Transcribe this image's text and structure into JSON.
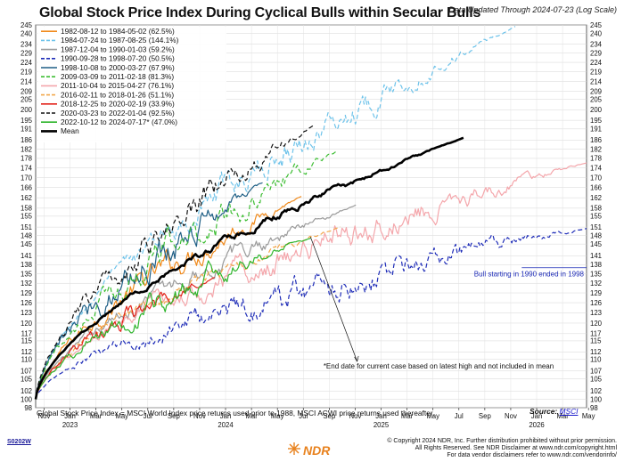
{
  "header": {
    "title": "Global Stock Price Index During Cyclical Bulls within Secular Bulls",
    "updated": "Data Updated Through 2024-07-23 (Log Scale)"
  },
  "footer": {
    "note": "Global Stock Price Index = MSCI World Index price returns used prior to 1988, MSCI ACWI price returns used thereafter.",
    "source_label": "Source:",
    "source_link": "MSCI",
    "code": "S0202W",
    "logo": "NDR",
    "copyright_1": "© Copyright 2024 NDR, Inc. Further distribution prohibited without prior permission.",
    "copyright_2": "All Rights Reserved. See NDR Disclaimer at www.ndr.com/copyright.html",
    "copyright_3": "For data vendor disclaimers refer to www.ndr.com/vendorinfo/"
  },
  "colors": {
    "s1982": "#f08a1c",
    "s1984": "#6ec3ea",
    "s1987": "#9a9a9a",
    "s1990": "#1f2db8",
    "s1998": "#1f5f85",
    "s2009": "#3dbd33",
    "s2011": "#f4a6ab",
    "s2016": "#f2a64a",
    "s2018": "#e2231a",
    "s2020": "#111111",
    "s2022": "#2db52b",
    "mean": "#000000"
  },
  "chart_data": {
    "type": "line",
    "title": "Global Stock Price Index During Cyclical Bulls within Secular Bulls",
    "y_scale": "log",
    "ylim": [
      98,
      245
    ],
    "y_ticks": [
      98,
      100,
      102,
      105,
      107,
      110,
      112,
      115,
      117,
      120,
      123,
      126,
      129,
      132,
      135,
      138,
      141,
      145,
      148,
      151,
      155,
      158,
      162,
      166,
      170,
      174,
      178,
      182,
      186,
      191,
      195,
      200,
      205,
      209,
      214,
      219,
      224,
      229,
      234,
      240,
      245
    ],
    "x_ticks": [
      {
        "label": "Nov",
        "year": ""
      },
      {
        "label": "Jan",
        "year": "2023"
      },
      {
        "label": "Mar",
        "year": ""
      },
      {
        "label": "May",
        "year": ""
      },
      {
        "label": "Jul",
        "year": ""
      },
      {
        "label": "Sep",
        "year": ""
      },
      {
        "label": "Nov",
        "year": ""
      },
      {
        "label": "Jan",
        "year": "2024"
      },
      {
        "label": "Mar",
        "year": ""
      },
      {
        "label": "May",
        "year": ""
      },
      {
        "label": "Jul",
        "year": ""
      },
      {
        "label": "Sep",
        "year": ""
      },
      {
        "label": "Nov",
        "year": ""
      },
      {
        "label": "Jan",
        "year": "2025"
      },
      {
        "label": "Mar",
        "year": ""
      },
      {
        "label": "May",
        "year": ""
      },
      {
        "label": "Jul",
        "year": ""
      },
      {
        "label": "Sep",
        "year": ""
      },
      {
        "label": "Nov",
        "year": ""
      },
      {
        "label": "Jan",
        "year": "2026"
      },
      {
        "label": "Mar",
        "year": ""
      },
      {
        "label": "May",
        "year": ""
      }
    ],
    "x_unit": "months from 2022-10-12 (current cycle start)",
    "x_range": [
      0,
      42.5
    ],
    "grid": true,
    "legend_position": "top-left",
    "series": [
      {
        "name": "1982-08-12 to 1984-05-02 (62.5%)",
        "color_key": "s1982",
        "dash": "solid",
        "end": 162.5,
        "end_month": 20.5,
        "noise": 2.2
      },
      {
        "name": "1984-07-24 to 1987-08-25 (144.1%)",
        "color_key": "s1984",
        "dash": "dash",
        "end": 244.1,
        "end_month": 37,
        "noise": 2.4
      },
      {
        "name": "1987-12-04 to 1990-01-03 (59.2%)",
        "color_key": "s1987",
        "dash": "solid",
        "end": 159.2,
        "end_month": 24.7,
        "noise": 1.6
      },
      {
        "name": "1990-09-28 to 1998-07-20 (50.5%)",
        "color_key": "s1990",
        "dash": "dash",
        "end": 150.5,
        "end_month": 42.5,
        "noise": 2.6
      },
      {
        "name": "1998-10-08 to 2000-03-27 (67.9%)",
        "color_key": "s1998",
        "dash": "solid",
        "end": 167.9,
        "end_month": 17.5,
        "noise": 3.0
      },
      {
        "name": "2009-03-09 to 2011-02-18 (81.3%)",
        "color_key": "s2009",
        "dash": "dash",
        "end": 181.3,
        "end_month": 23.3,
        "noise": 2.8
      },
      {
        "name": "2011-10-04 to 2015-04-27 (76.1%)",
        "color_key": "s2011",
        "dash": "solid",
        "end": 176.1,
        "end_month": 42.5,
        "noise": 2.4
      },
      {
        "name": "2016-02-11 to 2018-01-26 (51.1%)",
        "color_key": "s2016",
        "dash": "dash",
        "end": 151.1,
        "end_month": 23.5,
        "noise": 1.2
      },
      {
        "name": "2018-12-25 to 2020-02-19 (33.9%)",
        "color_key": "s2018",
        "dash": "solid",
        "end": 133.9,
        "end_month": 13.8,
        "noise": 1.6
      },
      {
        "name": "2020-03-23 to 2022-01-04 (92.5%)",
        "color_key": "s2020",
        "dash": "dash",
        "end": 192.5,
        "end_month": 21.4,
        "noise": 2.6
      },
      {
        "name": "2022-10-12 to 2024-07-17* (47.0%)",
        "color_key": "s2022",
        "dash": "solid",
        "end": 147.0,
        "end_month": 21.2,
        "noise": 2.0
      },
      {
        "name": "Mean",
        "color_key": "mean",
        "dash": "solid",
        "end": 187,
        "end_month": 33,
        "noise": 0.6
      }
    ],
    "annotations": [
      {
        "text": "Bull starting in 1990 ended in 1998",
        "color": "#1f2db8"
      },
      {
        "text": "*End date for current case based on latest high and not included in mean",
        "color": "#111111"
      }
    ]
  }
}
